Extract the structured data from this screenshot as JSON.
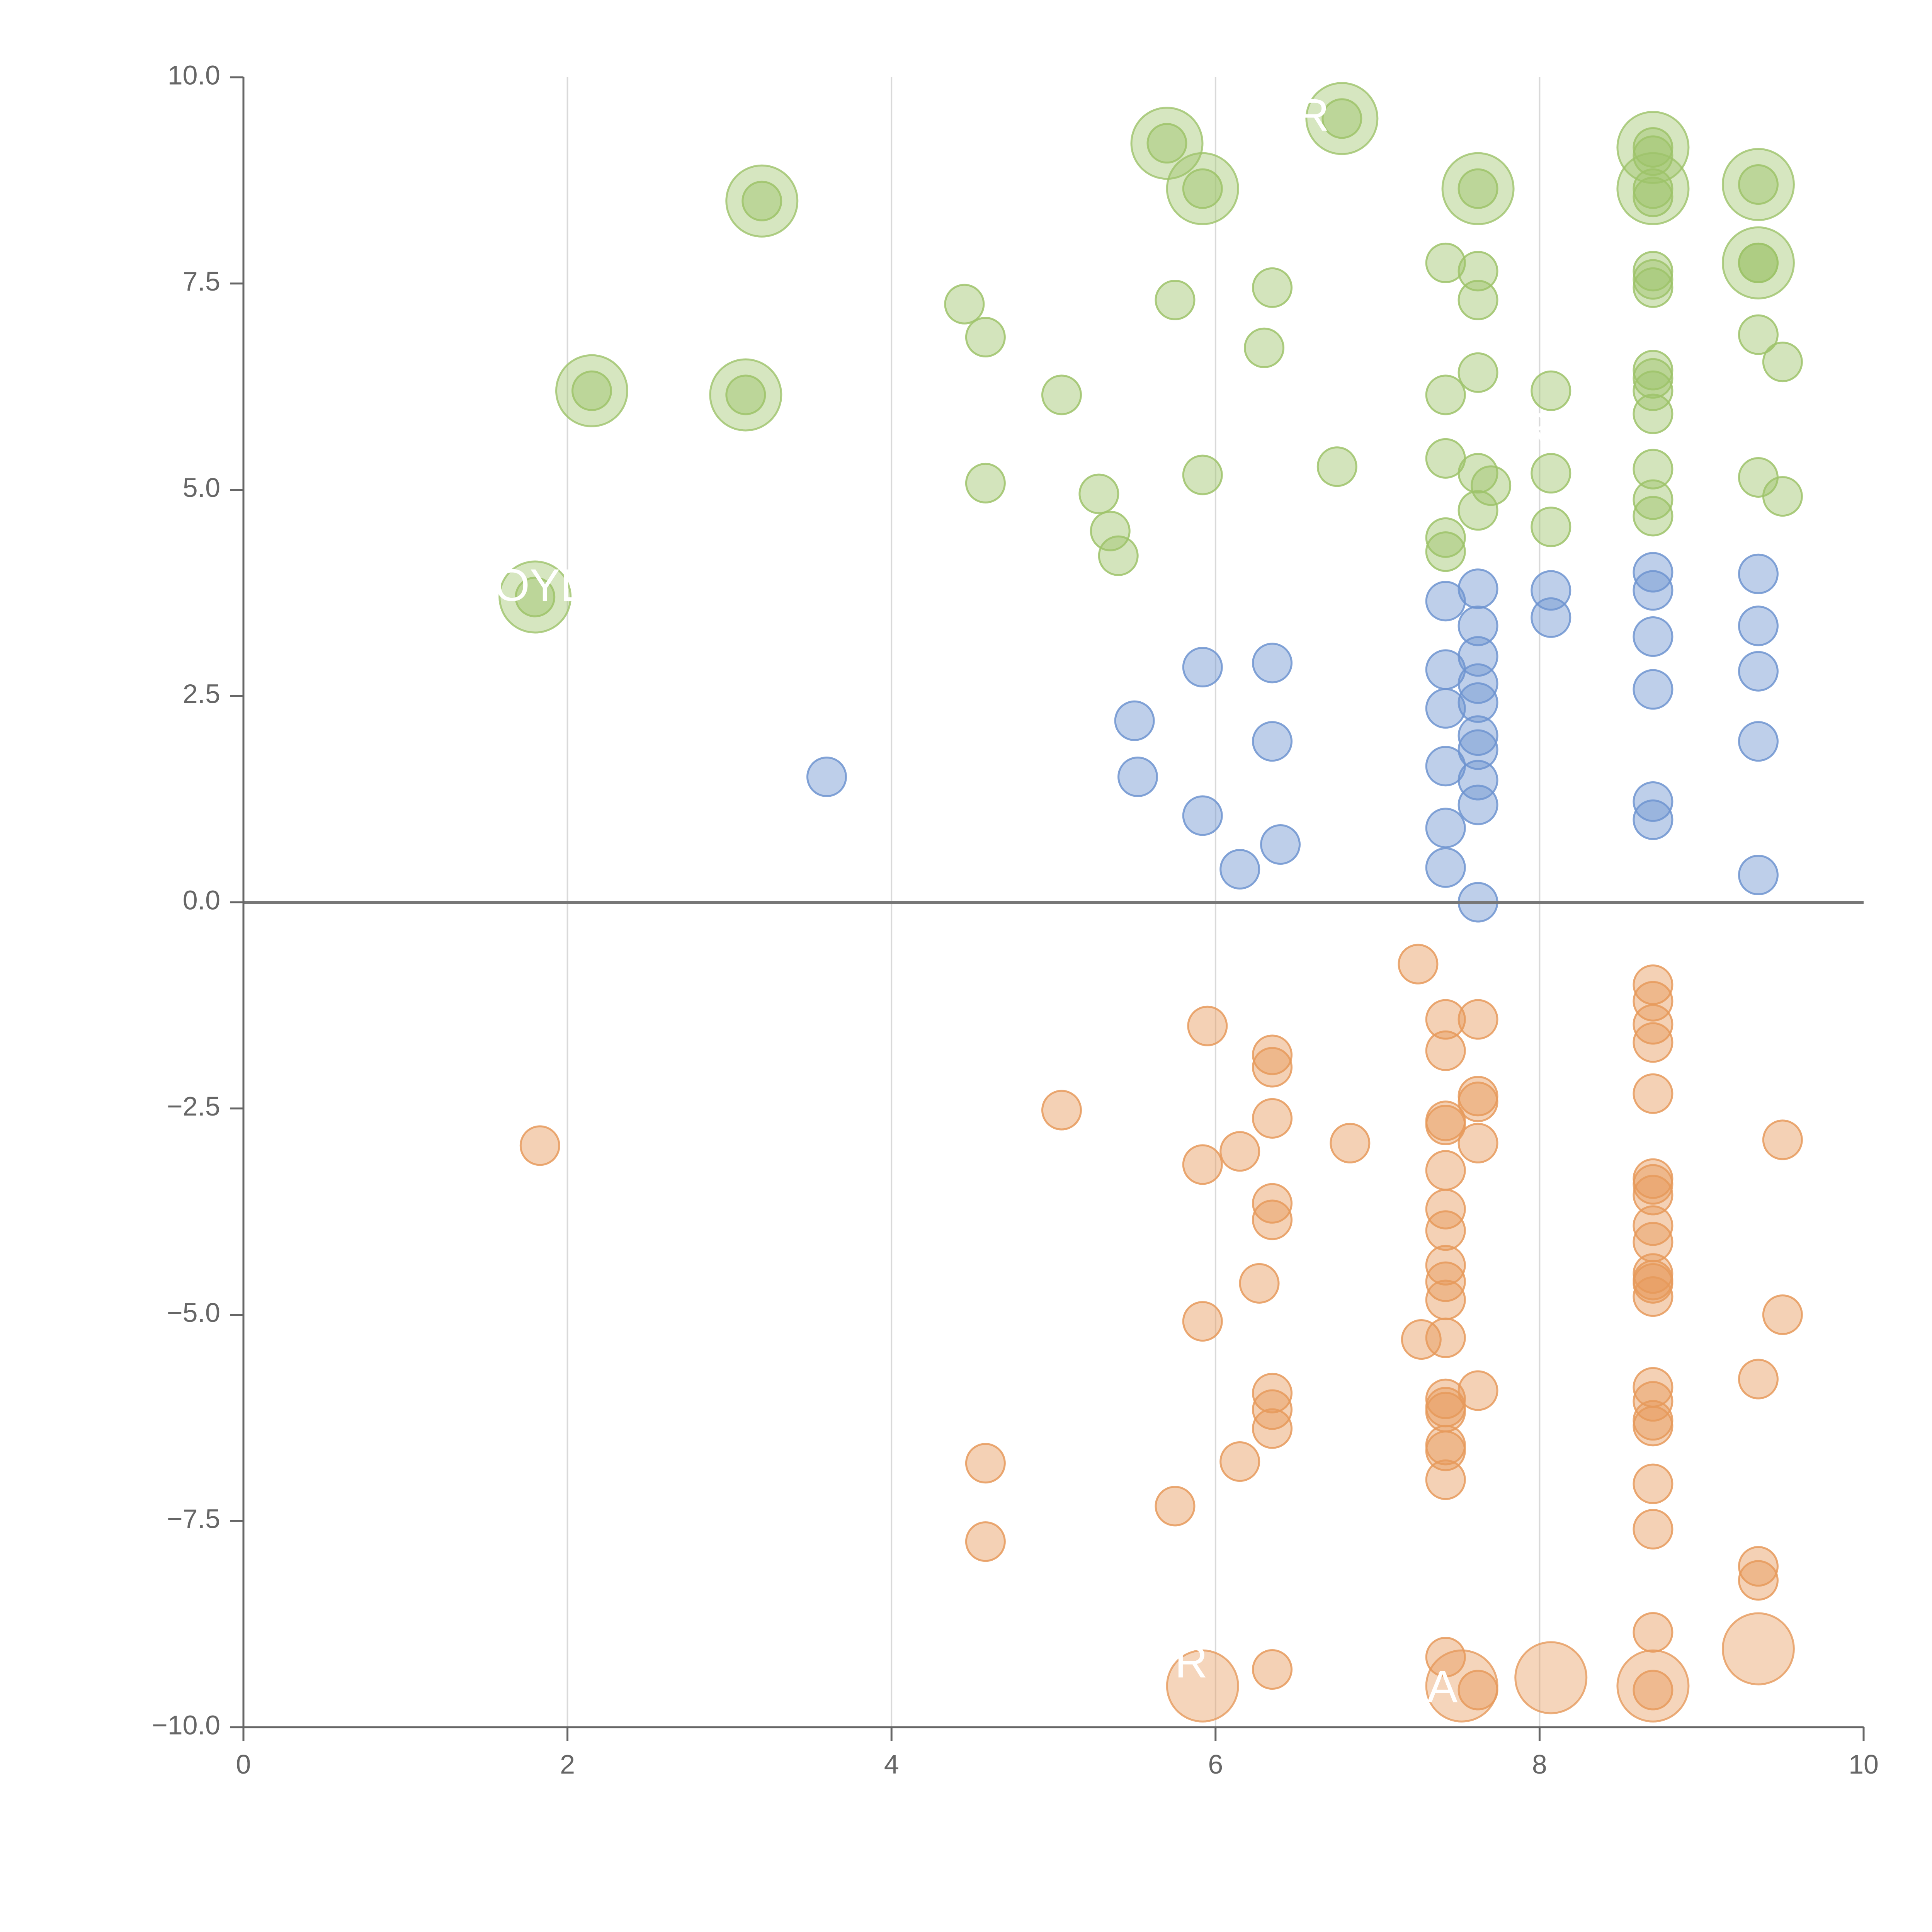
{
  "chart_data": {
    "type": "scatter",
    "title": "",
    "xlabel": "",
    "ylabel": "",
    "xlim": [
      0,
      10
    ],
    "ylim": [
      -10,
      10
    ],
    "x_ticks": [
      "0",
      "2",
      "4",
      "6",
      "8",
      "10"
    ],
    "y_ticks": [
      "−10.0",
      "−7.5",
      "−5.0",
      "−2.5",
      "0.0",
      "2.5",
      "5.0",
      "7.5",
      "10.0"
    ],
    "vertical_gridlines": [
      2,
      4,
      6,
      8
    ],
    "zero_line": 0,
    "colors": {
      "green": "#9dc36a",
      "blue": "#6e94d0",
      "orange": "#e69a5c",
      "axis": "#666666",
      "grid": "#d9d9d9"
    },
    "series": [
      {
        "color": "green",
        "points": [
          [
            3.2,
            8.5
          ],
          [
            2.15,
            6.2
          ],
          [
            3.1,
            6.15
          ],
          [
            1.8,
            3.7
          ],
          [
            5.7,
            9.2
          ],
          [
            5.92,
            8.65
          ],
          [
            6.78,
            9.5
          ],
          [
            7.62,
            8.65
          ],
          [
            8.7,
            9.15
          ],
          [
            8.7,
            8.65
          ],
          [
            9.35,
            8.7
          ],
          [
            9.35,
            7.75
          ],
          [
            4.45,
            7.25
          ],
          [
            4.58,
            6.85
          ],
          [
            5.05,
            6.15
          ],
          [
            4.58,
            5.08
          ],
          [
            5.28,
            4.95
          ],
          [
            5.35,
            4.5
          ],
          [
            5.4,
            4.2
          ],
          [
            5.75,
            7.3
          ],
          [
            5.92,
            5.18
          ],
          [
            6.35,
            7.45
          ],
          [
            6.3,
            6.72
          ],
          [
            6.75,
            5.28
          ],
          [
            7.42,
            7.75
          ],
          [
            7.42,
            6.15
          ],
          [
            7.42,
            5.38
          ],
          [
            7.42,
            4.42
          ],
          [
            7.42,
            4.25
          ],
          [
            7.62,
            7.65
          ],
          [
            7.62,
            7.3
          ],
          [
            7.62,
            6.42
          ],
          [
            7.62,
            5.2
          ],
          [
            7.7,
            5.05
          ],
          [
            7.62,
            4.75
          ],
          [
            8.07,
            6.2
          ],
          [
            8.07,
            5.2
          ],
          [
            8.07,
            4.55
          ],
          [
            8.7,
            9.05
          ],
          [
            8.7,
            8.55
          ],
          [
            8.7,
            7.65
          ],
          [
            8.7,
            7.55
          ],
          [
            8.7,
            7.45
          ],
          [
            8.7,
            6.45
          ],
          [
            8.7,
            6.35
          ],
          [
            8.7,
            6.2
          ],
          [
            8.7,
            5.92
          ],
          [
            8.7,
            5.25
          ],
          [
            8.7,
            4.88
          ],
          [
            8.7,
            4.68
          ],
          [
            9.35,
            7.75
          ],
          [
            9.35,
            6.88
          ],
          [
            9.5,
            6.55
          ],
          [
            9.35,
            5.15
          ],
          [
            9.5,
            4.92
          ]
        ]
      },
      {
        "color": "blue",
        "points": [
          [
            3.6,
            1.52
          ],
          [
            5.5,
            2.2
          ],
          [
            5.52,
            1.52
          ],
          [
            5.92,
            2.85
          ],
          [
            5.92,
            1.05
          ],
          [
            6.15,
            0.4
          ],
          [
            6.35,
            2.9
          ],
          [
            6.35,
            1.95
          ],
          [
            6.4,
            0.7
          ],
          [
            7.42,
            3.65
          ],
          [
            7.42,
            2.82
          ],
          [
            7.42,
            2.35
          ],
          [
            7.42,
            1.65
          ],
          [
            7.42,
            0.9
          ],
          [
            7.42,
            0.42
          ],
          [
            7.62,
            3.8
          ],
          [
            7.62,
            3.35
          ],
          [
            7.62,
            2.98
          ],
          [
            7.62,
            2.65
          ],
          [
            7.62,
            2.42
          ],
          [
            7.62,
            2.02
          ],
          [
            7.62,
            1.85
          ],
          [
            7.62,
            1.48
          ],
          [
            7.62,
            1.18
          ],
          [
            7.62,
            0.0
          ],
          [
            8.07,
            3.78
          ],
          [
            8.07,
            3.45
          ],
          [
            8.7,
            4.0
          ],
          [
            8.7,
            3.78
          ],
          [
            8.7,
            3.22
          ],
          [
            8.7,
            2.58
          ],
          [
            8.7,
            1.22
          ],
          [
            8.7,
            1.0
          ],
          [
            9.35,
            3.98
          ],
          [
            9.35,
            3.35
          ],
          [
            9.35,
            2.8
          ],
          [
            9.35,
            1.95
          ],
          [
            9.35,
            0.33
          ]
        ]
      },
      {
        "color": "orange",
        "points": [
          [
            1.83,
            -2.95
          ],
          [
            4.58,
            -6.8
          ],
          [
            4.58,
            -7.75
          ],
          [
            5.05,
            -2.52
          ],
          [
            5.75,
            -7.32
          ],
          [
            5.95,
            -1.5
          ],
          [
            5.92,
            -3.18
          ],
          [
            5.92,
            -5.08
          ],
          [
            6.15,
            -3.02
          ],
          [
            6.15,
            -6.78
          ],
          [
            6.35,
            -1.85
          ],
          [
            6.35,
            -2.0
          ],
          [
            6.35,
            -2.62
          ],
          [
            6.35,
            -3.65
          ],
          [
            6.35,
            -3.85
          ],
          [
            6.27,
            -4.62
          ],
          [
            6.35,
            -5.95
          ],
          [
            6.35,
            -6.15
          ],
          [
            6.35,
            -6.38
          ],
          [
            6.35,
            -9.3
          ],
          [
            6.83,
            -2.92
          ],
          [
            7.25,
            -0.75
          ],
          [
            7.27,
            -5.3
          ],
          [
            7.42,
            -1.42
          ],
          [
            7.42,
            -1.8
          ],
          [
            7.42,
            -2.65
          ],
          [
            7.42,
            -2.7
          ],
          [
            7.42,
            -3.25
          ],
          [
            7.42,
            -3.72
          ],
          [
            7.42,
            -3.98
          ],
          [
            7.42,
            -4.4
          ],
          [
            7.42,
            -4.6
          ],
          [
            7.42,
            -4.82
          ],
          [
            7.42,
            -5.28
          ],
          [
            7.42,
            -6.02
          ],
          [
            7.42,
            -6.12
          ],
          [
            7.42,
            -6.18
          ],
          [
            7.42,
            -6.58
          ],
          [
            7.42,
            -6.65
          ],
          [
            7.42,
            -7.0
          ],
          [
            7.42,
            -9.15
          ],
          [
            7.62,
            -1.42
          ],
          [
            7.62,
            -2.35
          ],
          [
            7.62,
            -2.42
          ],
          [
            7.62,
            -2.92
          ],
          [
            7.62,
            -5.92
          ],
          [
            7.62,
            -9.55
          ],
          [
            8.7,
            -1.0
          ],
          [
            8.7,
            -1.2
          ],
          [
            8.7,
            -1.48
          ],
          [
            8.7,
            -1.7
          ],
          [
            8.7,
            -2.32
          ],
          [
            8.7,
            -3.35
          ],
          [
            8.7,
            -3.42
          ],
          [
            8.7,
            -3.55
          ],
          [
            8.7,
            -3.92
          ],
          [
            8.7,
            -4.12
          ],
          [
            8.7,
            -4.5
          ],
          [
            8.7,
            -4.58
          ],
          [
            8.7,
            -4.62
          ],
          [
            8.7,
            -4.78
          ],
          [
            8.7,
            -5.88
          ],
          [
            8.7,
            -6.05
          ],
          [
            8.7,
            -6.28
          ],
          [
            8.7,
            -6.35
          ],
          [
            8.7,
            -7.05
          ],
          [
            8.7,
            -7.6
          ],
          [
            8.7,
            -8.85
          ],
          [
            8.7,
            -9.55
          ],
          [
            9.35,
            -5.78
          ],
          [
            9.35,
            -8.05
          ],
          [
            9.35,
            -8.22
          ],
          [
            9.5,
            -2.88
          ],
          [
            9.5,
            -5.0
          ]
        ]
      }
    ],
    "big_bubbles": [
      {
        "color": "green",
        "x": 3.2,
        "y": 8.5
      },
      {
        "color": "green",
        "x": 2.15,
        "y": 6.2
      },
      {
        "color": "green",
        "x": 3.1,
        "y": 6.15
      },
      {
        "color": "green",
        "x": 1.8,
        "y": 3.7
      },
      {
        "color": "green",
        "x": 5.7,
        "y": 9.2
      },
      {
        "color": "green",
        "x": 5.92,
        "y": 8.65
      },
      {
        "color": "green",
        "x": 6.78,
        "y": 9.5
      },
      {
        "color": "green",
        "x": 7.62,
        "y": 8.65
      },
      {
        "color": "green",
        "x": 8.7,
        "y": 9.15
      },
      {
        "color": "green",
        "x": 8.7,
        "y": 8.65
      },
      {
        "color": "green",
        "x": 9.35,
        "y": 8.7
      },
      {
        "color": "green",
        "x": 9.35,
        "y": 7.75
      },
      {
        "color": "orange",
        "x": 5.92,
        "y": -9.5
      },
      {
        "color": "orange",
        "x": 7.52,
        "y": -9.5
      },
      {
        "color": "orange",
        "x": 8.07,
        "y": -9.4
      },
      {
        "color": "orange",
        "x": 8.7,
        "y": -9.5
      },
      {
        "color": "orange",
        "x": 9.35,
        "y": -9.05
      }
    ],
    "labels": [
      {
        "text": "R",
        "x": 6.6,
        "y": 9.5
      },
      {
        "text": "OYL",
        "x": 1.83,
        "y": 3.8
      },
      {
        "text": "RIC",
        "x": 8.1,
        "y": 5.7
      },
      {
        "text": "A",
        "x": 7.4,
        "y": -9.55
      },
      {
        "text": "R",
        "x": 5.85,
        "y": -9.25
      }
    ]
  }
}
